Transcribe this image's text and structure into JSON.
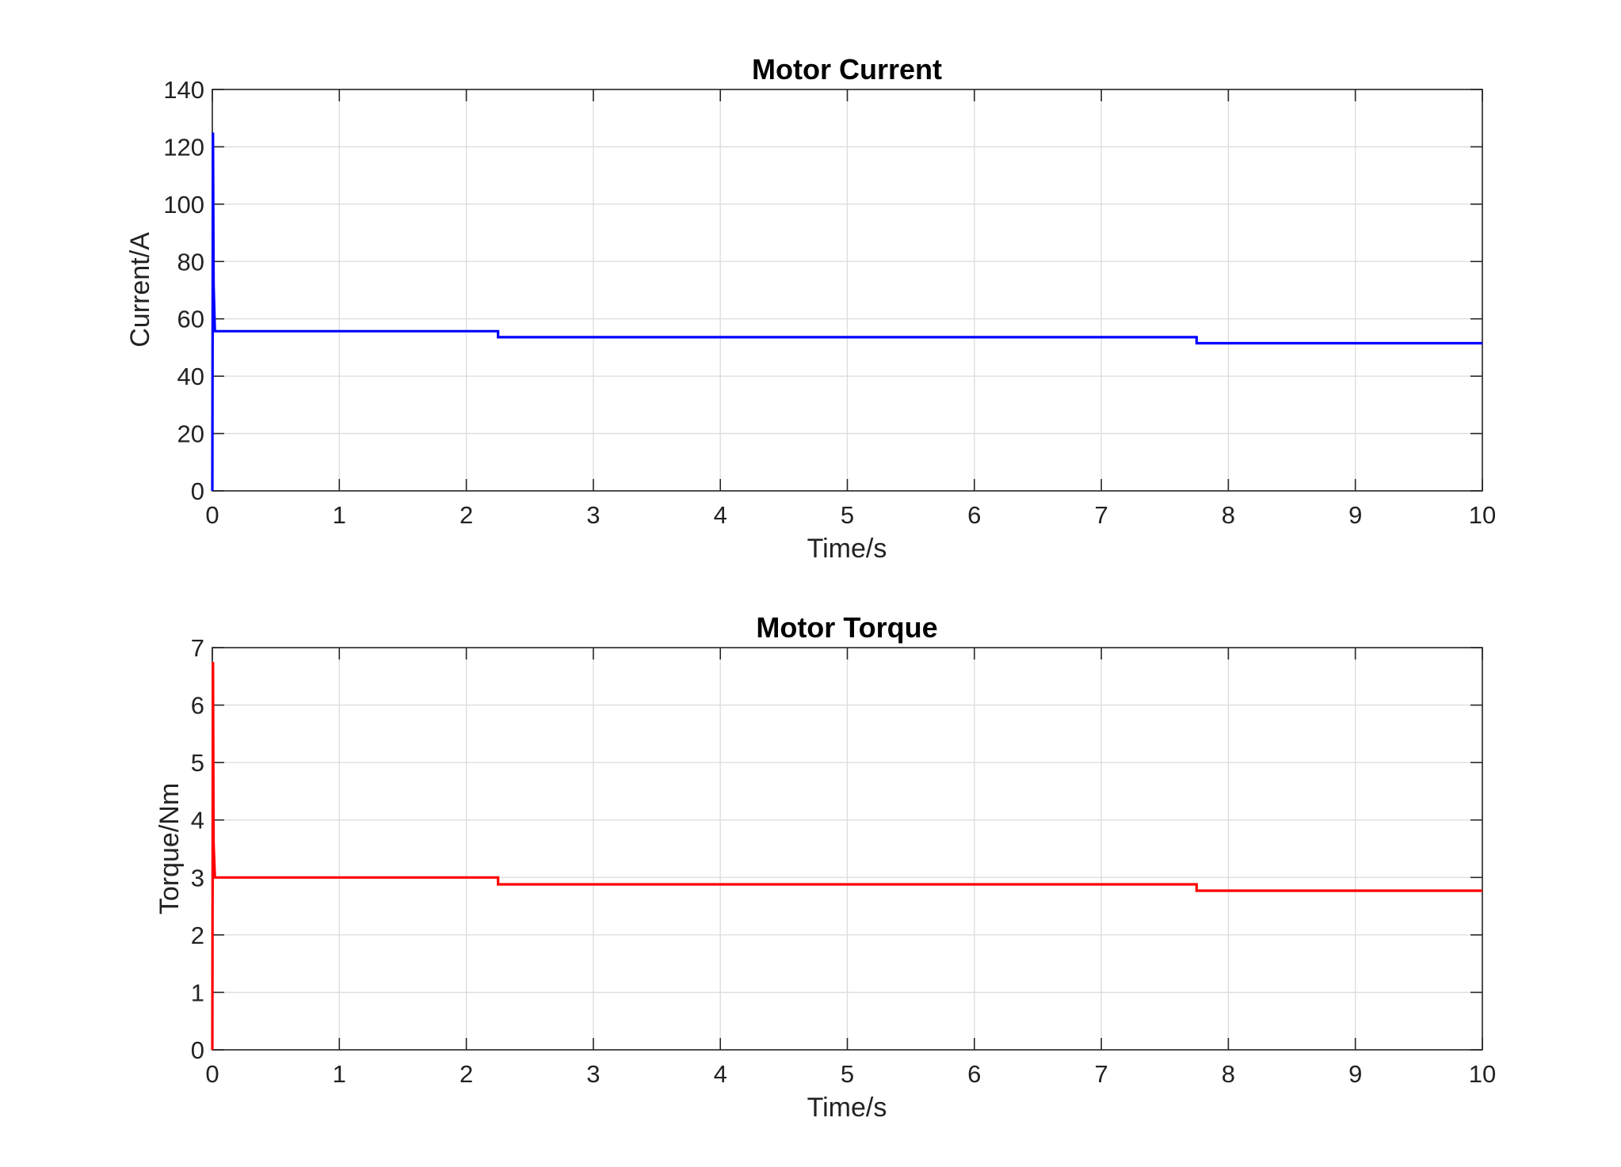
{
  "chart_data": [
    {
      "type": "line",
      "title": "Motor Current",
      "xlabel": "Time/s",
      "ylabel": "Current/A",
      "xlim": [
        0,
        10
      ],
      "ylim": [
        0,
        140
      ],
      "xticks": [
        0,
        1,
        2,
        3,
        4,
        5,
        6,
        7,
        8,
        9,
        10
      ],
      "yticks": [
        0,
        20,
        40,
        60,
        80,
        100,
        120,
        140
      ],
      "grid": true,
      "legend": "none",
      "series": [
        {
          "color": "#0000ff",
          "x": [
            0,
            0.005,
            0.01,
            0.02,
            2.25,
            2.25,
            7.75,
            7.75,
            10
          ],
          "y": [
            0,
            125,
            72,
            55.7,
            55.7,
            53.6,
            53.6,
            51.5,
            51.5
          ]
        }
      ]
    },
    {
      "type": "line",
      "title": "Motor Torque",
      "xlabel": "Time/s",
      "ylabel": "Torque/Nm",
      "xlim": [
        0,
        10
      ],
      "ylim": [
        0,
        7
      ],
      "xticks": [
        0,
        1,
        2,
        3,
        4,
        5,
        6,
        7,
        8,
        9,
        10
      ],
      "yticks": [
        0,
        1,
        2,
        3,
        4,
        5,
        6,
        7
      ],
      "grid": true,
      "legend": "none",
      "series": [
        {
          "color": "#ff0000",
          "x": [
            0,
            0.005,
            0.01,
            0.02,
            2.25,
            2.25,
            7.75,
            7.75,
            10
          ],
          "y": [
            0,
            6.75,
            3.6,
            3.0,
            3.0,
            2.88,
            2.88,
            2.77,
            2.77
          ]
        }
      ]
    }
  ]
}
